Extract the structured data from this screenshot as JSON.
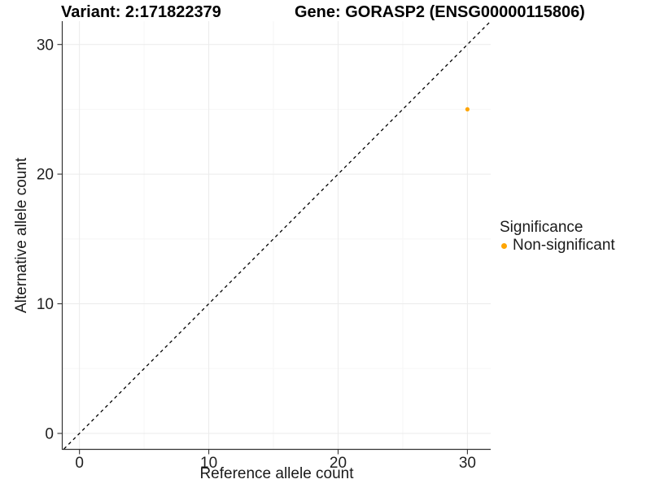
{
  "titles": {
    "variant": "Variant: 2:171822379",
    "gene": "Gene: GORASP2 (ENSG00000115806)"
  },
  "chart_data": {
    "type": "scatter",
    "title_left": "Variant: 2:171822379",
    "title_right": "Gene: GORASP2 (ENSG00000115806)",
    "xlabel": "Reference allele count",
    "ylabel": "Alternative allele count",
    "xlim": [
      -1.3,
      31.8
    ],
    "ylim": [
      -1.2,
      31.8
    ],
    "x_ticks": [
      0,
      10,
      20,
      30
    ],
    "y_ticks": [
      0,
      10,
      20,
      30
    ],
    "x_minor_ticks": [
      5,
      15,
      25
    ],
    "y_minor_ticks": [
      5,
      15,
      25
    ],
    "grid": "major+minor",
    "identity_line": {
      "style": "dashed",
      "color": "#000000",
      "from": -1.2,
      "to": 31.8
    },
    "series": [
      {
        "name": "Non-significant",
        "color": "#FFA500",
        "points": [
          {
            "x": 30,
            "y": 25
          }
        ]
      }
    ],
    "legend": {
      "title": "Significance",
      "position": "right",
      "entries": [
        {
          "label": "Non-significant",
          "color": "#FFA500"
        }
      ]
    },
    "colors": {
      "grid_major": "#EBEBEB",
      "grid_minor": "#F6F6F6",
      "axis": "#333333",
      "tick_label": "#1f1f1f"
    }
  }
}
